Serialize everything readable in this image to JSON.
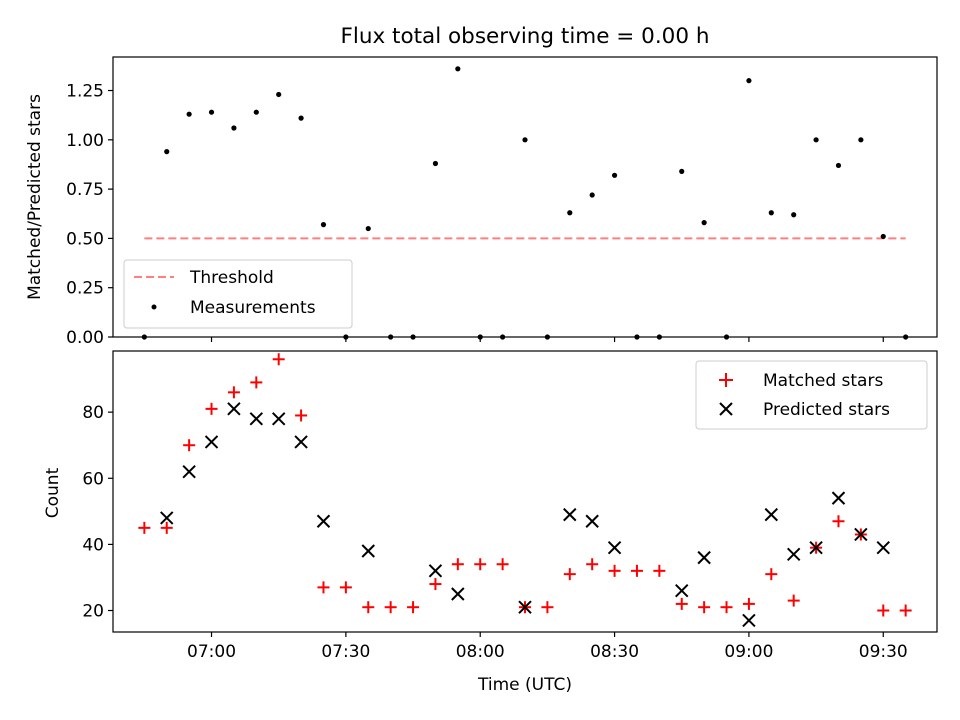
{
  "chart_data": [
    {
      "type": "scatter",
      "title": "Flux total observing time = 0.00 h",
      "ylabel": "Matched/Predicted stars",
      "xlabel": "",
      "ylim": [
        0,
        1.42
      ],
      "yticks": [
        "0.00",
        "0.25",
        "0.50",
        "0.75",
        "1.00",
        "1.25"
      ],
      "yticks_values": [
        0,
        0.25,
        0.5,
        0.75,
        1.0,
        1.25
      ],
      "threshold": {
        "name": "Threshold",
        "value": 0.5,
        "x_start": "06:45",
        "x_end": "09:35",
        "color": "#ff7f7f"
      },
      "series": [
        {
          "name": "Measurements",
          "color": "#000000",
          "x": [
            "06:45",
            "06:50",
            "06:55",
            "07:00",
            "07:05",
            "07:10",
            "07:15",
            "07:20",
            "07:25",
            "07:30",
            "07:35",
            "07:40",
            "07:45",
            "07:50",
            "07:55",
            "08:00",
            "08:05",
            "08:10",
            "08:15",
            "08:20",
            "08:25",
            "08:30",
            "08:35",
            "08:40",
            "08:45",
            "08:50",
            "08:55",
            "09:00",
            "09:05",
            "09:10",
            "09:15",
            "09:20",
            "09:25",
            "09:30",
            "09:35"
          ],
          "y": [
            0.0,
            0.94,
            1.13,
            1.14,
            1.06,
            1.14,
            1.23,
            1.11,
            0.57,
            0.0,
            0.55,
            0.0,
            0.0,
            0.88,
            1.36,
            0.0,
            0.0,
            1.0,
            0.0,
            0.63,
            0.72,
            0.82,
            0.0,
            0.0,
            0.84,
            0.58,
            0.0,
            1.3,
            0.63,
            0.62,
            1.0,
            0.87,
            1.0,
            0.51,
            0.0
          ]
        }
      ],
      "legend": "lower-left"
    },
    {
      "type": "scatter",
      "title": "",
      "xlabel": "Time (UTC)",
      "ylabel": "Count",
      "ylim": [
        13.5,
        98.5
      ],
      "yticks": [
        "20",
        "40",
        "60",
        "80"
      ],
      "yticks_values": [
        20,
        40,
        60,
        80
      ],
      "xlim": [
        "06:38",
        "09:42"
      ],
      "xticks": [
        "07:00",
        "07:30",
        "08:00",
        "08:30",
        "09:00",
        "09:30"
      ],
      "legend": "top-right",
      "series": [
        {
          "name": "Matched stars",
          "marker": "+",
          "color": "#ff0000",
          "x": [
            "06:45",
            "06:50",
            "06:55",
            "07:00",
            "07:05",
            "07:10",
            "07:15",
            "07:20",
            "07:25",
            "07:30",
            "07:35",
            "07:40",
            "07:45",
            "07:50",
            "07:55",
            "08:00",
            "08:05",
            "08:10",
            "08:15",
            "08:20",
            "08:25",
            "08:30",
            "08:35",
            "08:40",
            "08:45",
            "08:50",
            "08:55",
            "09:00",
            "09:05",
            "09:10",
            "09:15",
            "09:20",
            "09:25",
            "09:30",
            "09:35"
          ],
          "y": [
            45,
            45,
            70,
            81,
            86,
            89,
            96,
            79,
            27,
            27,
            21,
            21,
            21,
            28,
            34,
            34,
            34,
            21,
            21,
            31,
            34,
            32,
            32,
            32,
            22,
            21,
            21,
            22,
            31,
            23,
            39,
            47,
            43,
            20,
            20
          ]
        },
        {
          "name": "Predicted stars",
          "marker": "x",
          "color": "#000000",
          "x": [
            "06:50",
            "06:55",
            "07:00",
            "07:05",
            "07:10",
            "07:15",
            "07:20",
            "07:25",
            "07:35",
            "07:50",
            "07:55",
            "08:10",
            "08:20",
            "08:25",
            "08:30",
            "08:45",
            "08:50",
            "09:00",
            "09:05",
            "09:10",
            "09:15",
            "09:20",
            "09:25",
            "09:30"
          ],
          "y": [
            48,
            62,
            71,
            81,
            78,
            78,
            71,
            47,
            38,
            32,
            25,
            21,
            49,
            47,
            39,
            26,
            36,
            17,
            49,
            37,
            39,
            54,
            43,
            39
          ]
        }
      ]
    }
  ]
}
